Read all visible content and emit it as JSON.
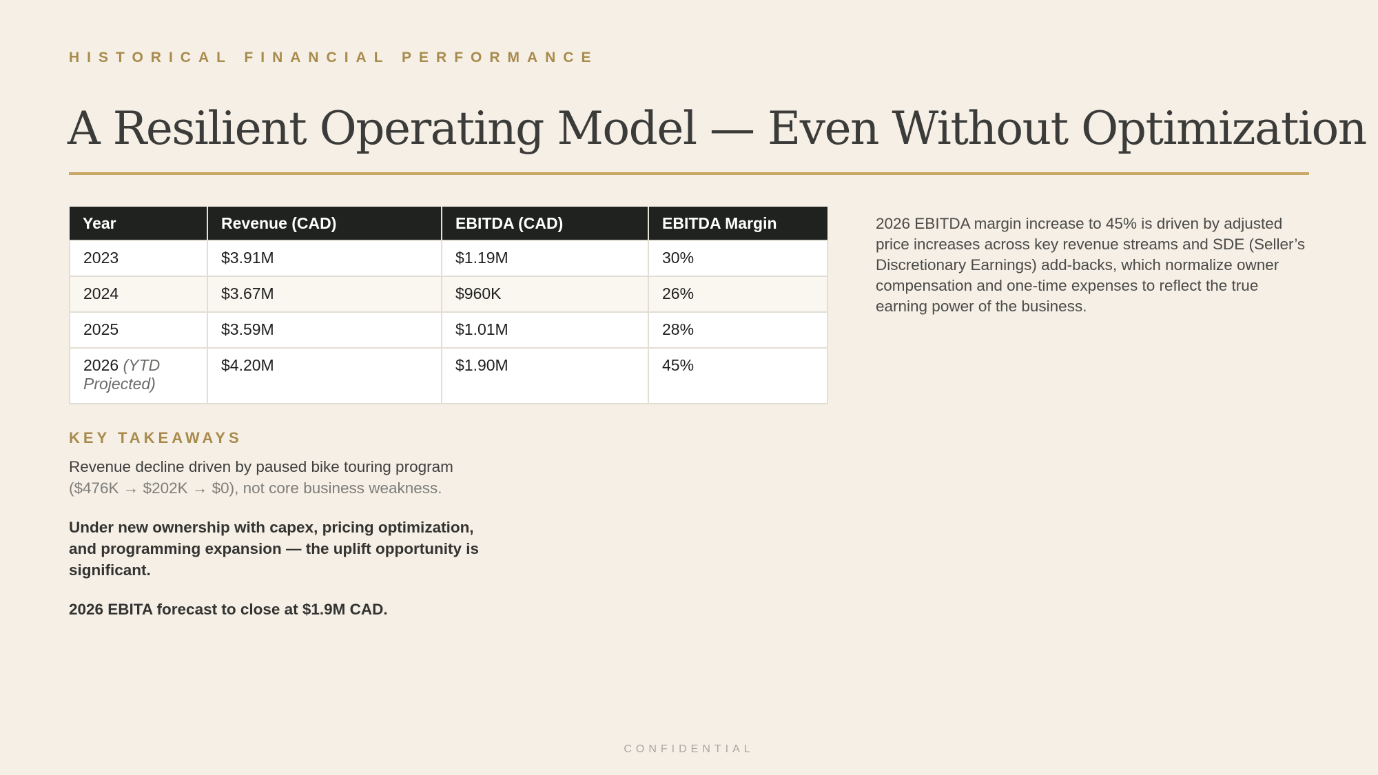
{
  "header": {
    "eyebrow": "HISTORICAL FINANCIAL PERFORMANCE",
    "title": "A Resilient Operating Model — Even Without Optimization"
  },
  "table": {
    "headers": [
      "Year",
      "Revenue (CAD)",
      "EBITDA (CAD)",
      "EBITDA Margin"
    ],
    "rows": [
      {
        "year": "2023",
        "note": "",
        "revenue": "$3.91M",
        "ebitda": "$1.19M",
        "margin": "30%"
      },
      {
        "year": "2024",
        "note": "",
        "revenue": "$3.67M",
        "ebitda": "$960K",
        "margin": "26%"
      },
      {
        "year": "2025",
        "note": "",
        "revenue": "$3.59M",
        "ebitda": "$1.01M",
        "margin": "28%"
      },
      {
        "year": "2026",
        "note": "(YTD Projected)",
        "revenue": "$4.20M",
        "ebitda": "$1.90M",
        "margin": "45%"
      }
    ]
  },
  "side_note": "2026 EBITDA margin increase to 45% is driven by adjusted price increases across key revenue streams and SDE (Seller’s Discretionary Earnings) add-backs, which normalize owner compensation and one-time expenses to reflect the true earning power of the business.",
  "takeaways": {
    "heading": "KEY TAKEAWAYS",
    "line1": "Revenue decline driven by paused bike touring program",
    "line1_muted": "($476K → $202K → $0), not core business weakness.",
    "point2": "Under new ownership with capex, pricing optimization, and programming expansion — the uplift opportunity is significant.",
    "point3": "2026 EBITA forecast to close at $1.9M CAD."
  },
  "footer": "CONFIDENTIAL",
  "colors": {
    "background": "#f5efe5",
    "accent_gold": "#c9a765",
    "eyebrow_gold": "#a88a4c",
    "table_header": "#1f221f"
  }
}
